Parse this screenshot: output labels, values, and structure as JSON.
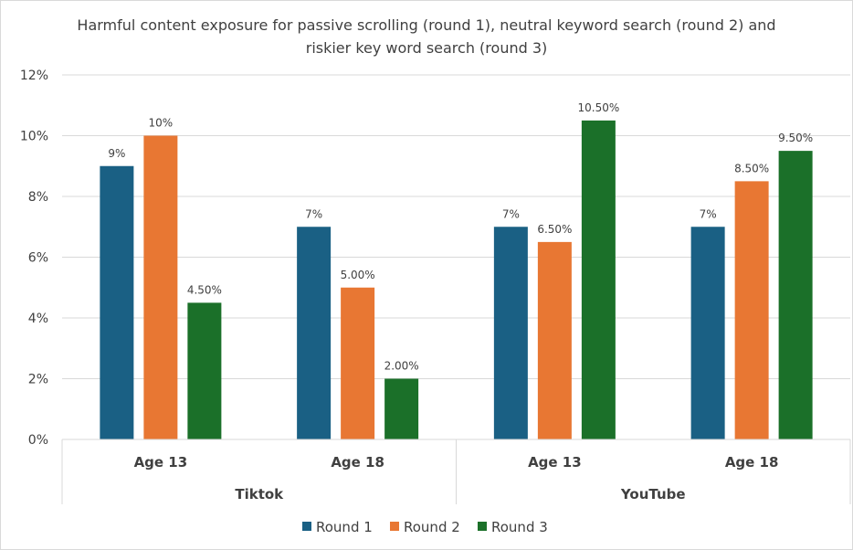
{
  "chart_data": {
    "type": "bar",
    "title_lines": [
      "Harmful content exposure for passive scrolling (round 1), neutral keyword search (round 2) and",
      "riskier key word search  (round 3)"
    ],
    "groups": [
      {
        "label": "Tiktok",
        "categories": [
          "Age 13",
          "Age 18"
        ]
      },
      {
        "label": "YouTube",
        "categories": [
          "Age 13",
          "Age 18"
        ]
      }
    ],
    "categories": [
      "Age 13",
      "Age 18",
      "Age 13",
      "Age 18"
    ],
    "series": [
      {
        "name": "Round 1",
        "color": "#1a6084",
        "values": [
          9,
          7,
          7,
          7
        ],
        "labels": [
          "9%",
          "7%",
          "7%",
          "7%"
        ]
      },
      {
        "name": "Round 2",
        "color": "#e87733",
        "values": [
          10,
          5,
          6.5,
          8.5
        ],
        "labels": [
          "10%",
          "5.00%",
          "6.50%",
          "8.50%"
        ]
      },
      {
        "name": "Round 3",
        "color": "#1b7029",
        "values": [
          4.5,
          2,
          10.5,
          9.5
        ],
        "labels": [
          "4.50%",
          "2.00%",
          "10.50%",
          "9.50%"
        ]
      }
    ],
    "ylim": [
      0,
      12
    ],
    "yticks": [
      0,
      2,
      4,
      6,
      8,
      10,
      12
    ],
    "ytick_labels": [
      "0%",
      "2%",
      "4%",
      "6%",
      "8%",
      "10%",
      "12%"
    ],
    "grid": true,
    "legend_position": "bottom"
  }
}
